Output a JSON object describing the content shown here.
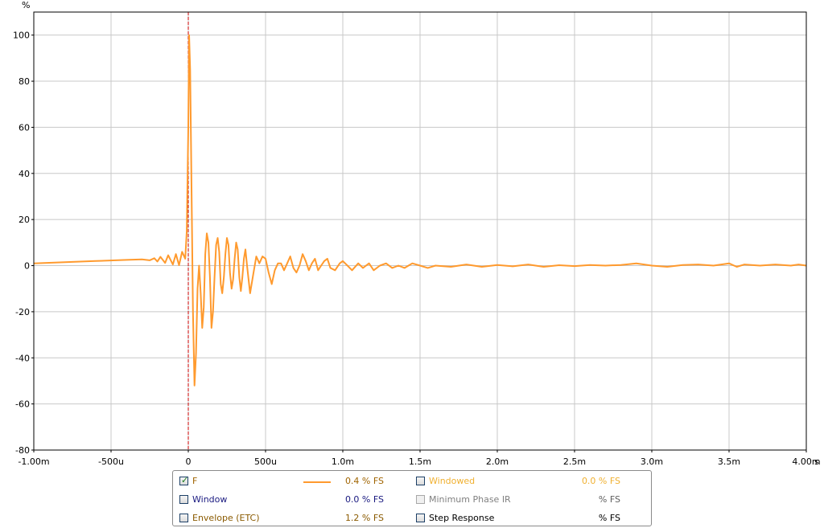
{
  "chart_data": {
    "type": "line",
    "y_unit": "%",
    "x_unit": "s",
    "xlim": [
      -0.001,
      0.004
    ],
    "ylim": [
      -80,
      110
    ],
    "x_ticks": [
      {
        "v": -0.001,
        "label": "-1.00m"
      },
      {
        "v": -0.0005,
        "label": "-500u"
      },
      {
        "v": 0,
        "label": "0"
      },
      {
        "v": 0.0005,
        "label": "500u"
      },
      {
        "v": 0.001,
        "label": "1.0m"
      },
      {
        "v": 0.0015,
        "label": "1.5m"
      },
      {
        "v": 0.002,
        "label": "2.0m"
      },
      {
        "v": 0.0025,
        "label": "2.5m"
      },
      {
        "v": 0.003,
        "label": "3.0m"
      },
      {
        "v": 0.0035,
        "label": "3.5m"
      },
      {
        "v": 0.004,
        "label": "4.00m"
      }
    ],
    "y_ticks": [
      {
        "v": 100,
        "label": "100"
      },
      {
        "v": 80,
        "label": "80"
      },
      {
        "v": 60,
        "label": "60"
      },
      {
        "v": 40,
        "label": "40"
      },
      {
        "v": 20,
        "label": "20"
      },
      {
        "v": 0,
        "label": "0"
      },
      {
        "v": -20,
        "label": "-20"
      },
      {
        "v": -40,
        "label": "-40"
      },
      {
        "v": -60,
        "label": "-60"
      },
      {
        "v": -80,
        "label": "-80"
      }
    ],
    "grid": true,
    "marker_x": 0,
    "series": [
      {
        "name": "F",
        "color": "#ff9a2e",
        "points": [
          [
            -0.001,
            1
          ],
          [
            -0.0008,
            1.5
          ],
          [
            -0.0006,
            2
          ],
          [
            -0.0004,
            2.5
          ],
          [
            -0.0003,
            2.7
          ],
          [
            -0.00025,
            2.3
          ],
          [
            -0.00022,
            3.2
          ],
          [
            -0.0002,
            1.8
          ],
          [
            -0.00018,
            3.8
          ],
          [
            -0.00015,
            1.2
          ],
          [
            -0.00013,
            4.5
          ],
          [
            -0.0001,
            0.5
          ],
          [
            -8e-05,
            5
          ],
          [
            -6e-05,
            0.2
          ],
          [
            -4e-05,
            6
          ],
          [
            -2e-05,
            3
          ],
          [
            -1e-05,
            15
          ],
          [
            0,
            60
          ],
          [
            5e-06,
            100
          ],
          [
            1.2e-05,
            85
          ],
          [
            2e-05,
            40
          ],
          [
            3e-05,
            -20
          ],
          [
            4e-05,
            -52
          ],
          [
            5e-05,
            -38
          ],
          [
            6e-05,
            -10
          ],
          [
            7e-05,
            0
          ],
          [
            8e-05,
            -12
          ],
          [
            9e-05,
            -27
          ],
          [
            0.0001,
            -18
          ],
          [
            0.00011,
            5
          ],
          [
            0.00012,
            14
          ],
          [
            0.00013,
            10
          ],
          [
            0.00014,
            -5
          ],
          [
            0.00015,
            -27
          ],
          [
            0.00016,
            -20
          ],
          [
            0.00017,
            -5
          ],
          [
            0.00018,
            9
          ],
          [
            0.00019,
            12
          ],
          [
            0.0002,
            6
          ],
          [
            0.00021,
            -8
          ],
          [
            0.00022,
            -12
          ],
          [
            0.00023,
            -5
          ],
          [
            0.00024,
            5
          ],
          [
            0.00025,
            12
          ],
          [
            0.00026,
            9
          ],
          [
            0.00027,
            -3
          ],
          [
            0.00028,
            -10
          ],
          [
            0.00029,
            -6
          ],
          [
            0.0003,
            3
          ],
          [
            0.00031,
            10
          ],
          [
            0.00032,
            7
          ],
          [
            0.00033,
            -5
          ],
          [
            0.00034,
            -11
          ],
          [
            0.00035,
            -5
          ],
          [
            0.00036,
            3
          ],
          [
            0.00037,
            7
          ],
          [
            0.00038,
            0
          ],
          [
            0.0004,
            -12
          ],
          [
            0.00042,
            -4
          ],
          [
            0.00044,
            4
          ],
          [
            0.00046,
            1
          ],
          [
            0.00048,
            4
          ],
          [
            0.0005,
            3
          ],
          [
            0.00052,
            -3
          ],
          [
            0.00054,
            -8
          ],
          [
            0.00056,
            -2
          ],
          [
            0.00058,
            1
          ],
          [
            0.0006,
            1
          ],
          [
            0.00062,
            -2
          ],
          [
            0.00064,
            1
          ],
          [
            0.00066,
            4
          ],
          [
            0.00068,
            -1
          ],
          [
            0.0007,
            -3
          ],
          [
            0.00072,
            0
          ],
          [
            0.00074,
            5
          ],
          [
            0.00076,
            2
          ],
          [
            0.00078,
            -2
          ],
          [
            0.0008,
            1
          ],
          [
            0.00082,
            3
          ],
          [
            0.00084,
            -2
          ],
          [
            0.00086,
            0
          ],
          [
            0.00088,
            2
          ],
          [
            0.0009,
            3
          ],
          [
            0.00092,
            -1
          ],
          [
            0.00095,
            -2
          ],
          [
            0.00098,
            1
          ],
          [
            0.001,
            2
          ],
          [
            0.00103,
            0
          ],
          [
            0.00106,
            -2
          ],
          [
            0.0011,
            1
          ],
          [
            0.00113,
            -1
          ],
          [
            0.00117,
            1
          ],
          [
            0.0012,
            -2
          ],
          [
            0.00124,
            0
          ],
          [
            0.00128,
            1
          ],
          [
            0.00132,
            -1
          ],
          [
            0.00136,
            0
          ],
          [
            0.0014,
            -1
          ],
          [
            0.00145,
            1
          ],
          [
            0.0015,
            0
          ],
          [
            0.00155,
            -1
          ],
          [
            0.0016,
            0
          ],
          [
            0.0017,
            -0.5
          ],
          [
            0.0018,
            0.5
          ],
          [
            0.0019,
            -0.5
          ],
          [
            0.002,
            0.3
          ],
          [
            0.0021,
            -0.3
          ],
          [
            0.0022,
            0.5
          ],
          [
            0.0023,
            -0.5
          ],
          [
            0.0024,
            0.2
          ],
          [
            0.0025,
            -0.2
          ],
          [
            0.0026,
            0.3
          ],
          [
            0.0027,
            0
          ],
          [
            0.0028,
            0.3
          ],
          [
            0.0029,
            1
          ],
          [
            0.003,
            0
          ],
          [
            0.0031,
            -0.5
          ],
          [
            0.0032,
            0.3
          ],
          [
            0.0033,
            0.5
          ],
          [
            0.0034,
            0
          ],
          [
            0.0035,
            1
          ],
          [
            0.00355,
            -0.5
          ],
          [
            0.0036,
            0.5
          ],
          [
            0.0037,
            0
          ],
          [
            0.0038,
            0.5
          ],
          [
            0.0039,
            0
          ],
          [
            0.00395,
            0.5
          ],
          [
            0.004,
            0
          ]
        ]
      }
    ]
  },
  "legend": [
    {
      "checked": true,
      "label": "F",
      "label_color": "#a06400",
      "swatch": "#ff9a2e",
      "value": "0.4 % FS",
      "value_color": "#a06400",
      "disabled": false
    },
    {
      "checked": false,
      "label": "Windowed",
      "label_color": "#f0b030",
      "value": "0.0 % FS",
      "value_color": "#f0b030",
      "disabled": false
    },
    {
      "checked": false,
      "label": "Window",
      "label_color": "#1a1a80",
      "value": "0.0 % FS",
      "value_color": "#1a1a80",
      "disabled": false
    },
    {
      "checked": false,
      "label": "Minimum Phase IR",
      "label_color": "#808080",
      "value": "% FS",
      "value_color": "#606060",
      "disabled": true
    },
    {
      "checked": false,
      "label": "Envelope (ETC)",
      "label_color": "#8a5a00",
      "value": "1.2 % FS",
      "value_color": "#8a5a00",
      "disabled": false
    },
    {
      "checked": false,
      "label": "Step Response",
      "label_color": "#000000",
      "value": "% FS",
      "value_color": "#000000",
      "disabled": false
    }
  ]
}
